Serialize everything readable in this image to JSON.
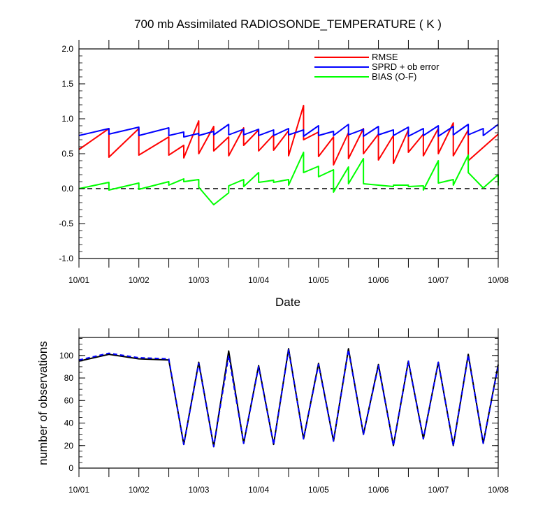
{
  "chart_data": [
    {
      "type": "line",
      "title": "700 mb Assimilated RADIOSONDE_TEMPERATURE ( K )",
      "xlabel": "Date",
      "ylabel": "",
      "xlim": [
        0,
        7
      ],
      "ylim": [
        -1.0,
        2.0
      ],
      "x_ticks": [
        0,
        1,
        2,
        3,
        4,
        5,
        6,
        7
      ],
      "x_tick_labels": [
        "10/01",
        "10/02",
        "10/03",
        "10/04",
        "10/05",
        "10/06",
        "10/07",
        "10/08"
      ],
      "y_ticks": [
        -1.0,
        -0.5,
        0.0,
        0.5,
        1.0,
        1.5,
        2.0
      ],
      "y_tick_labels": [
        "-1.0",
        "-0.5",
        "0.0",
        "0.5",
        "1.0",
        "1.5",
        "2.0"
      ],
      "zero_line": "dashed",
      "grid": false,
      "legend_position": "top-right",
      "series": [
        {
          "name": "RMSE",
          "color": "#ff0000",
          "points": [
            [
              0,
              0.56
            ],
            [
              0.5,
              0.86
            ],
            [
              0.5,
              0.45
            ],
            [
              1,
              0.86
            ],
            [
              1,
              0.48
            ],
            [
              1.5,
              0.74
            ],
            [
              1.5,
              0.48
            ],
            [
              1.75,
              0.62
            ],
            [
              1.75,
              0.44
            ],
            [
              2,
              0.97
            ],
            [
              2,
              0.5
            ],
            [
              2.25,
              0.89
            ],
            [
              2.25,
              0.54
            ],
            [
              2.5,
              0.74
            ],
            [
              2.5,
              0.47
            ],
            [
              2.75,
              0.87
            ],
            [
              2.75,
              0.62
            ],
            [
              3,
              0.84
            ],
            [
              3,
              0.54
            ],
            [
              3.25,
              0.77
            ],
            [
              3.25,
              0.55
            ],
            [
              3.5,
              0.83
            ],
            [
              3.5,
              0.47
            ],
            [
              3.75,
              1.19
            ],
            [
              3.75,
              0.7
            ],
            [
              4,
              0.81
            ],
            [
              4,
              0.46
            ],
            [
              4.25,
              0.74
            ],
            [
              4.25,
              0.34
            ],
            [
              4.5,
              0.8
            ],
            [
              4.5,
              0.43
            ],
            [
              4.75,
              0.86
            ],
            [
              4.75,
              0.5
            ],
            [
              5,
              0.78
            ],
            [
              5,
              0.41
            ],
            [
              5.25,
              0.76
            ],
            [
              5.25,
              0.36
            ],
            [
              5.5,
              0.84
            ],
            [
              5.5,
              0.52
            ],
            [
              5.75,
              0.78
            ],
            [
              5.75,
              0.47
            ],
            [
              6,
              0.86
            ],
            [
              6,
              0.5
            ],
            [
              6.25,
              0.94
            ],
            [
              6.25,
              0.47
            ],
            [
              6.5,
              0.84
            ],
            [
              6.5,
              0.4
            ],
            [
              7,
              0.78
            ]
          ]
        },
        {
          "name": "SPRD + ob error",
          "color": "#0000ff",
          "points": [
            [
              0,
              0.76
            ],
            [
              0.5,
              0.86
            ],
            [
              0.5,
              0.78
            ],
            [
              1,
              0.88
            ],
            [
              1,
              0.76
            ],
            [
              1.5,
              0.87
            ],
            [
              1.5,
              0.76
            ],
            [
              1.75,
              0.81
            ],
            [
              1.75,
              0.74
            ],
            [
              2,
              0.79
            ],
            [
              2,
              0.76
            ],
            [
              2.25,
              0.82
            ],
            [
              2.25,
              0.77
            ],
            [
              2.5,
              0.92
            ],
            [
              2.5,
              0.77
            ],
            [
              2.75,
              0.85
            ],
            [
              2.75,
              0.77
            ],
            [
              3,
              0.85
            ],
            [
              3,
              0.76
            ],
            [
              3.25,
              0.84
            ],
            [
              3.25,
              0.76
            ],
            [
              3.5,
              0.86
            ],
            [
              3.5,
              0.77
            ],
            [
              3.75,
              0.84
            ],
            [
              3.75,
              0.75
            ],
            [
              4,
              0.9
            ],
            [
              4,
              0.76
            ],
            [
              4.25,
              0.82
            ],
            [
              4.25,
              0.76
            ],
            [
              4.5,
              0.92
            ],
            [
              4.5,
              0.77
            ],
            [
              4.75,
              0.85
            ],
            [
              4.75,
              0.75
            ],
            [
              5,
              0.89
            ],
            [
              5,
              0.77
            ],
            [
              5.25,
              0.84
            ],
            [
              5.25,
              0.76
            ],
            [
              5.5,
              0.88
            ],
            [
              5.5,
              0.75
            ],
            [
              5.75,
              0.86
            ],
            [
              5.75,
              0.76
            ],
            [
              6,
              0.9
            ],
            [
              6,
              0.75
            ],
            [
              6.25,
              0.89
            ],
            [
              6.25,
              0.77
            ],
            [
              6.5,
              0.92
            ],
            [
              6.5,
              0.77
            ],
            [
              6.75,
              0.86
            ],
            [
              6.75,
              0.76
            ],
            [
              7,
              0.92
            ]
          ]
        },
        {
          "name": "BIAS (O-F)",
          "color": "#00ff00",
          "points": [
            [
              0,
              0.0
            ],
            [
              0.5,
              0.09
            ],
            [
              0.5,
              -0.02
            ],
            [
              1,
              0.08
            ],
            [
              1,
              -0.01
            ],
            [
              1.5,
              0.1
            ],
            [
              1.5,
              0.05
            ],
            [
              1.75,
              0.14
            ],
            [
              1.75,
              0.1
            ],
            [
              2,
              0.13
            ],
            [
              2,
              0.02
            ],
            [
              2.25,
              -0.23
            ],
            [
              2.5,
              -0.06
            ],
            [
              2.5,
              0.04
            ],
            [
              2.75,
              0.13
            ],
            [
              2.75,
              0.03
            ],
            [
              3,
              0.23
            ],
            [
              3,
              0.09
            ],
            [
              3.25,
              0.12
            ],
            [
              3.25,
              0.09
            ],
            [
              3.5,
              0.13
            ],
            [
              3.5,
              0.05
            ],
            [
              3.75,
              0.52
            ],
            [
              3.75,
              0.23
            ],
            [
              4,
              0.32
            ],
            [
              4,
              0.17
            ],
            [
              4.25,
              0.27
            ],
            [
              4.25,
              -0.05
            ],
            [
              4.5,
              0.31
            ],
            [
              4.5,
              0.07
            ],
            [
              4.75,
              0.43
            ],
            [
              4.75,
              0.07
            ],
            [
              5,
              0.05
            ],
            [
              5.25,
              0.03
            ],
            [
              5.25,
              0.05
            ],
            [
              5.5,
              0.05
            ],
            [
              5.5,
              0.03
            ],
            [
              5.75,
              0.04
            ],
            [
              5.75,
              -0.02
            ],
            [
              6,
              0.4
            ],
            [
              6,
              0.08
            ],
            [
              6.25,
              0.13
            ],
            [
              6.25,
              0.05
            ],
            [
              6.5,
              0.48
            ],
            [
              6.5,
              0.23
            ],
            [
              6.75,
              0.01
            ],
            [
              7,
              0.2
            ],
            [
              7,
              0.05
            ],
            [
              7,
              0.17
            ]
          ]
        }
      ]
    },
    {
      "type": "line",
      "title": "",
      "xlabel": "",
      "ylabel": "number of observations",
      "xlim": [
        0,
        7
      ],
      "ylim": [
        0,
        116
      ],
      "x_ticks": [
        0,
        1,
        2,
        3,
        4,
        5,
        6,
        7
      ],
      "x_tick_labels": [
        "10/01",
        "10/02",
        "10/03",
        "10/04",
        "10/05",
        "10/06",
        "10/07",
        "10/08"
      ],
      "y_ticks": [
        0,
        20,
        40,
        60,
        80,
        100
      ],
      "y_tick_labels": [
        "0",
        "20",
        "40",
        "60",
        "80",
        "100"
      ],
      "grid": false,
      "series": [
        {
          "color": "#000000",
          "style": "solid",
          "points": [
            [
              0,
              95
            ],
            [
              0.5,
              101
            ],
            [
              1,
              97
            ],
            [
              1.5,
              96
            ],
            [
              1.75,
              21
            ],
            [
              2,
              94
            ],
            [
              2.25,
              19
            ],
            [
              2.5,
              104
            ],
            [
              2.75,
              22
            ],
            [
              3,
              91
            ],
            [
              3.25,
              21
            ],
            [
              3.5,
              106
            ],
            [
              3.75,
              26
            ],
            [
              4,
              93
            ],
            [
              4.25,
              24
            ],
            [
              4.5,
              106
            ],
            [
              4.75,
              30
            ],
            [
              5,
              92
            ],
            [
              5.25,
              20
            ],
            [
              5.5,
              95
            ],
            [
              5.75,
              26
            ],
            [
              6,
              94
            ],
            [
              6.25,
              20
            ],
            [
              6.5,
              101
            ],
            [
              6.75,
              22
            ],
            [
              7,
              92
            ]
          ]
        },
        {
          "color": "#0000ff",
          "style": "dashed",
          "points": [
            [
              0,
              96
            ],
            [
              0.5,
              102
            ],
            [
              1,
              98
            ],
            [
              1.5,
              97
            ],
            [
              1.75,
              21
            ],
            [
              2,
              93
            ],
            [
              2.25,
              19
            ],
            [
              2.5,
              100
            ],
            [
              2.75,
              22
            ],
            [
              3,
              90
            ],
            [
              3.25,
              21
            ],
            [
              3.5,
              105
            ],
            [
              3.75,
              26
            ],
            [
              4,
              92
            ],
            [
              4.25,
              24
            ],
            [
              4.5,
              105
            ],
            [
              4.75,
              30
            ],
            [
              5,
              91
            ],
            [
              5.25,
              20
            ],
            [
              5.5,
              95
            ],
            [
              5.75,
              26
            ],
            [
              6,
              94
            ],
            [
              6.25,
              20
            ],
            [
              6.5,
              100
            ],
            [
              6.75,
              22
            ],
            [
              7,
              91
            ]
          ]
        }
      ]
    }
  ]
}
